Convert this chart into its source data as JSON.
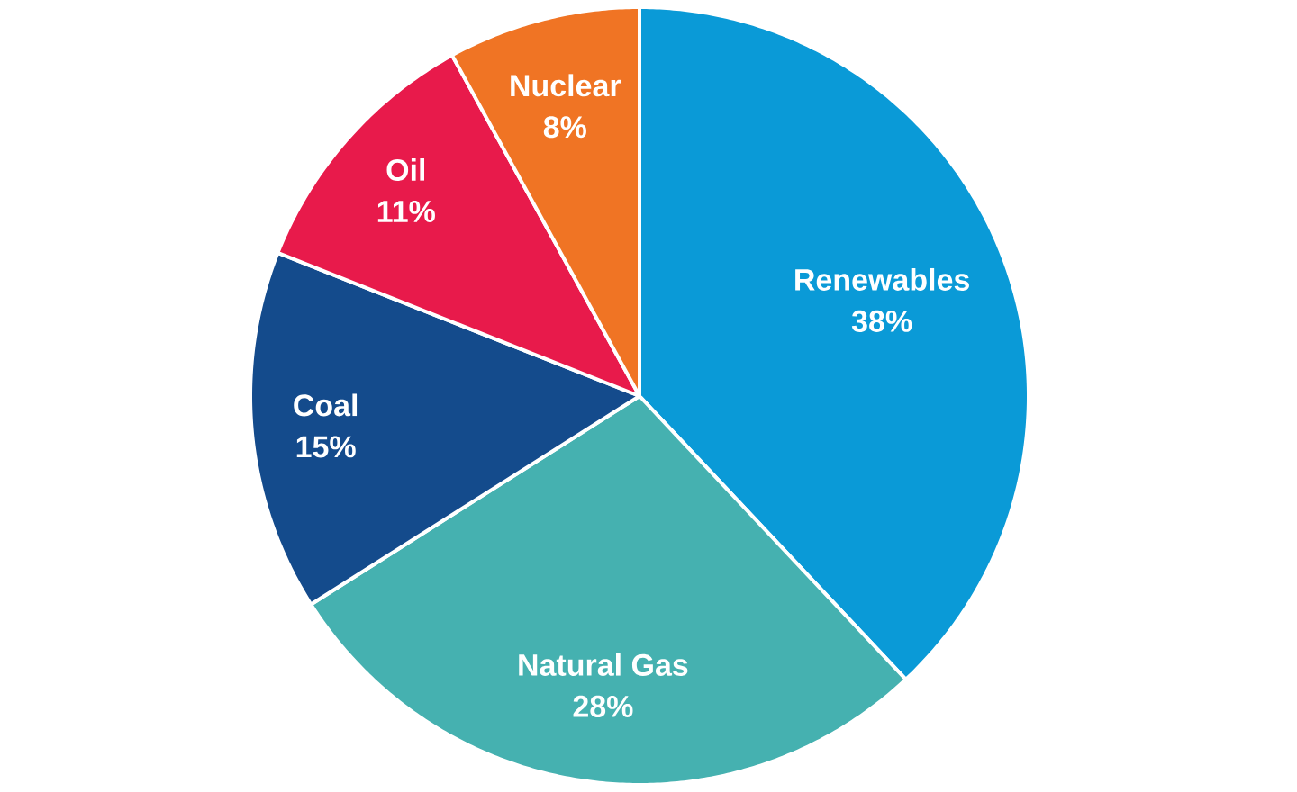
{
  "chart_data": {
    "type": "pie",
    "categories": [
      "Renewables",
      "Natural Gas",
      "Coal",
      "Oil",
      "Nuclear"
    ],
    "values": [
      38,
      28,
      15,
      11,
      8
    ],
    "colors": [
      "#0a9ad7",
      "#45b1b0",
      "#144b8c",
      "#e81a4b",
      "#f07424"
    ],
    "value_labels": [
      "38%",
      "28%",
      "15%",
      "11%",
      "8%"
    ]
  }
}
